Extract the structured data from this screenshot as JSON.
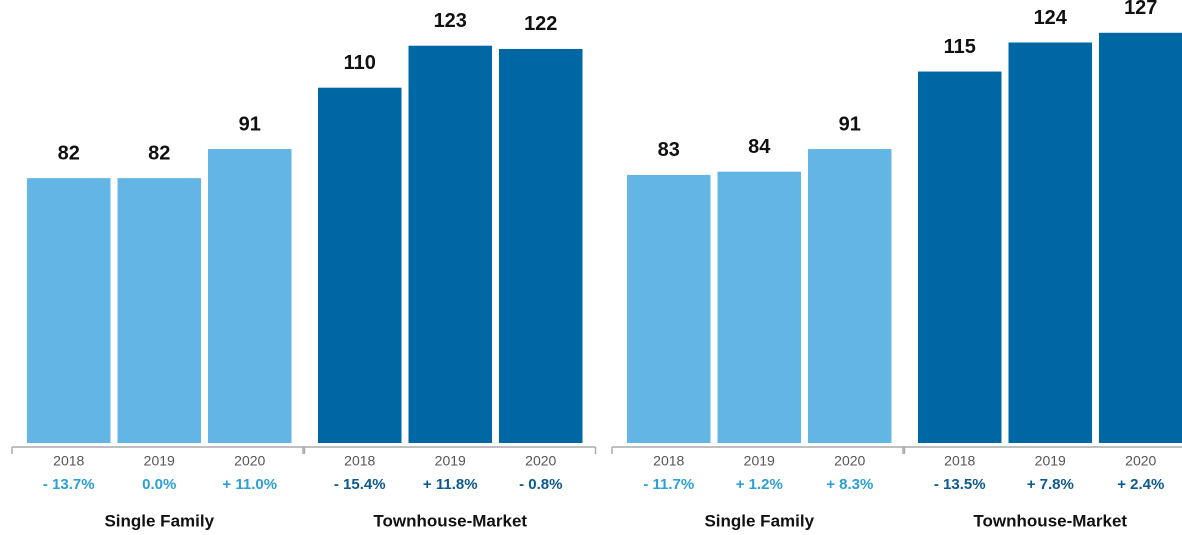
{
  "chart_data": [
    {
      "type": "bar",
      "groups": [
        {
          "name": "Single Family",
          "color": "#62b5e5",
          "text_color": "#2a9fd8",
          "categories": [
            "2018",
            "2019",
            "2020"
          ],
          "values": [
            82,
            82,
            91
          ],
          "changes": [
            "- 13.7%",
            "0.0%",
            "+ 11.0%"
          ]
        },
        {
          "name": "Townhouse-Market",
          "color": "#0067a5",
          "text_color": "#0b5a8f",
          "categories": [
            "2018",
            "2019",
            "2020"
          ],
          "values": [
            110,
            123,
            122
          ],
          "changes": [
            "- 15.4%",
            "+ 11.8%",
            "- 0.8%"
          ]
        }
      ]
    },
    {
      "type": "bar",
      "groups": [
        {
          "name": "Single Family",
          "color": "#62b5e5",
          "text_color": "#2a9fd8",
          "categories": [
            "2018",
            "2019",
            "2020"
          ],
          "values": [
            83,
            84,
            91
          ],
          "changes": [
            "- 11.7%",
            "+ 1.2%",
            "+ 8.3%"
          ]
        },
        {
          "name": "Townhouse-Market",
          "color": "#0067a5",
          "text_color": "#0b5a8f",
          "categories": [
            "2018",
            "2019",
            "2020"
          ],
          "values": [
            115,
            124,
            127
          ],
          "changes": [
            "- 13.5%",
            "+ 7.8%",
            "+ 2.4%"
          ]
        }
      ]
    }
  ]
}
